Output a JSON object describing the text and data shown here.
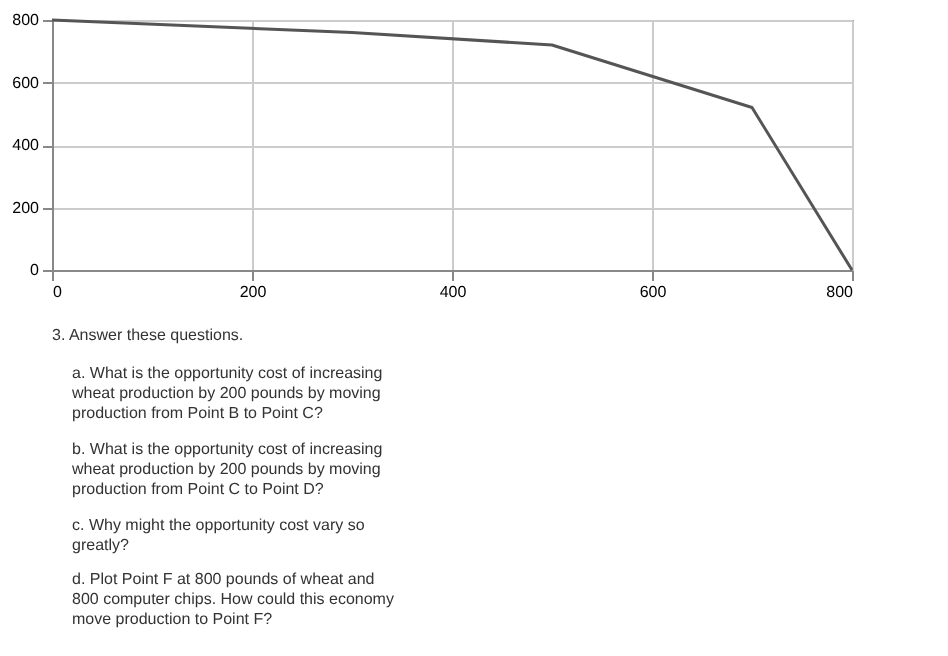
{
  "chart_data": {
    "type": "line",
    "x": [
      0,
      300,
      500,
      700,
      800
    ],
    "series": [
      {
        "color": "#555555",
        "values": [
          800,
          760,
          720,
          520,
          0
        ]
      }
    ],
    "xlim": [
      0,
      800
    ],
    "ylim": [
      0,
      800
    ],
    "xticks": [
      0,
      200,
      400,
      600,
      800
    ],
    "yticks": [
      0,
      200,
      400,
      600,
      800
    ],
    "grid": true,
    "marker": "none",
    "line_style": "solid",
    "annotations": [
      "3. Answer these questions.",
      "a. What is the opportunity cost of increasing wheat production by 200 pounds by moving production from Point B to Point C?",
      "b. What is the opportunity cost of increasing wheat production by 200 pounds by moving production from Point C to Point D?",
      "c. Why might the opportunity cost vary so greatly?",
      "d. Plot Point F at 800 pounds of wheat and 800 computer chips. How could this economy move production to Point F?"
    ]
  }
}
